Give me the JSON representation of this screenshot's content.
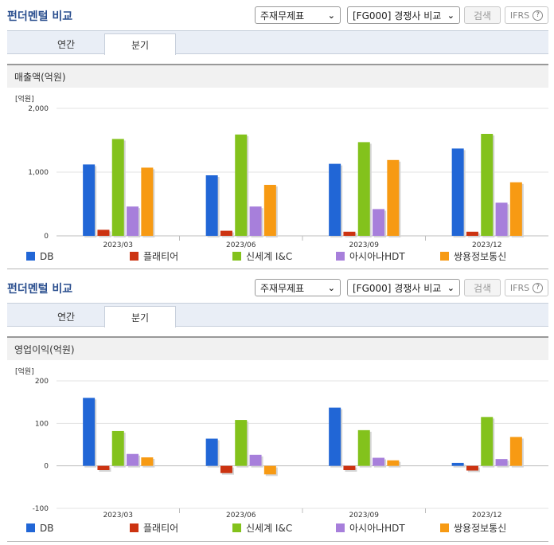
{
  "sections": [
    {
      "title": "펀더멘털 비교",
      "statement_select": "주재무제표",
      "compare_select": "[FG000] 경쟁사 비교",
      "search_label": "검색",
      "ifrs_label": "IFRS",
      "tabs": [
        "연간",
        "분기"
      ],
      "active_tab": "분기",
      "subtitle": "매출액(억원)"
    },
    {
      "title": "펀더멘털 비교",
      "statement_select": "주재무제표",
      "compare_select": "[FG000] 경쟁사 비교",
      "search_label": "검색",
      "ifrs_label": "IFRS",
      "tabs": [
        "연간",
        "분기"
      ],
      "active_tab": "분기",
      "subtitle": "영업이익(억원)"
    }
  ],
  "colors": {
    "DB": "#2166d6",
    "플래티어": "#cc3311",
    "신세계 I&C": "#83c21c",
    "아시아나HDT": "#a77fdb",
    "쌍용정보통신": "#f79a13"
  },
  "chart_data": [
    {
      "type": "bar",
      "title": "매출액(억원)",
      "unit_label": "[억원]",
      "categories": [
        "2023/03",
        "2023/06",
        "2023/09",
        "2023/12"
      ],
      "ylim": [
        0,
        2000
      ],
      "yticks": [
        0,
        1000,
        2000
      ],
      "ytick_labels": [
        "0",
        "1,000",
        "2,000"
      ],
      "grid": true,
      "legend": "bottom",
      "series": [
        {
          "name": "DB",
          "values": [
            1120,
            950,
            1130,
            1370
          ]
        },
        {
          "name": "플래티어",
          "values": [
            95,
            80,
            65,
            65
          ]
        },
        {
          "name": "신세계 I&C",
          "values": [
            1520,
            1590,
            1470,
            1600
          ]
        },
        {
          "name": "아시아나HDT",
          "values": [
            460,
            460,
            420,
            520
          ]
        },
        {
          "name": "쌍용정보통신",
          "values": [
            1070,
            800,
            1190,
            840
          ]
        }
      ]
    },
    {
      "type": "bar",
      "title": "영업이익(억원)",
      "unit_label": "[억원]",
      "categories": [
        "2023/03",
        "2023/06",
        "2023/09",
        "2023/12"
      ],
      "ylim": [
        -100,
        200
      ],
      "yticks": [
        -100,
        0,
        100,
        200
      ],
      "ytick_labels": [
        "-100",
        "0",
        "100",
        "200"
      ],
      "grid": true,
      "legend": "bottom",
      "series": [
        {
          "name": "DB",
          "values": [
            160,
            64,
            137,
            7
          ]
        },
        {
          "name": "플래티어",
          "values": [
            -10,
            -17,
            -10,
            -11
          ]
        },
        {
          "name": "신세계 I&C",
          "values": [
            82,
            108,
            84,
            115
          ]
        },
        {
          "name": "아시아나HDT",
          "values": [
            28,
            26,
            19,
            16
          ]
        },
        {
          "name": "쌍용정보통신",
          "values": [
            20,
            -20,
            13,
            68
          ]
        }
      ]
    }
  ]
}
